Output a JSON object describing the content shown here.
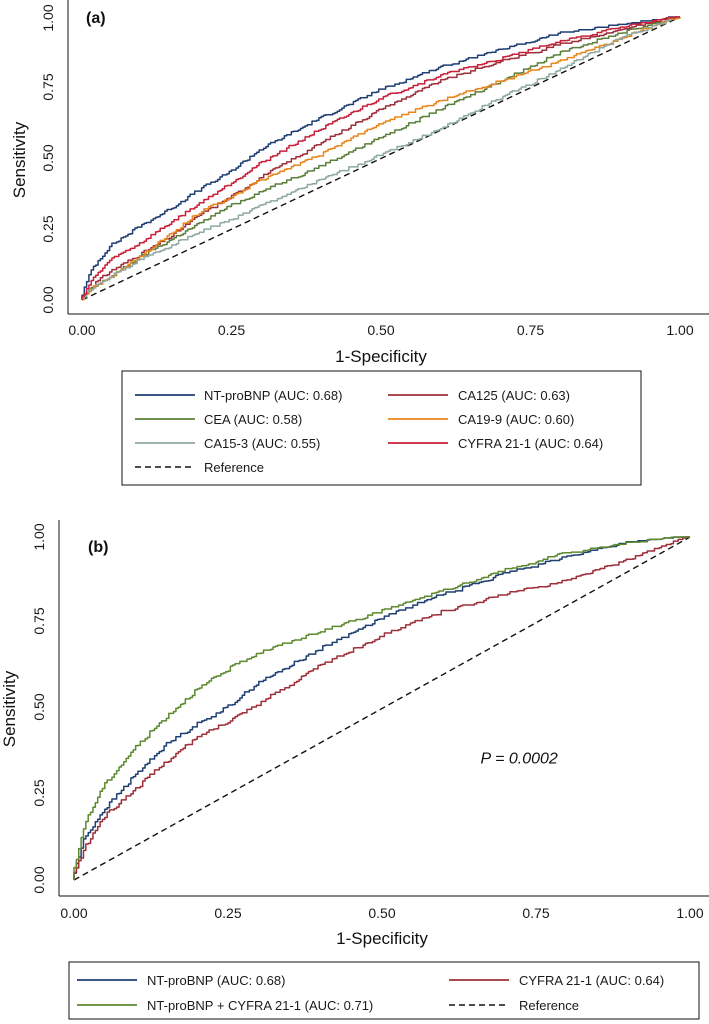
{
  "colors": {
    "ntprobnp": "#1f3f73",
    "ca125": "#9e2f3a",
    "cea": "#5b7f3a",
    "ca199": "#e8861c",
    "ca153": "#8fa8a0",
    "cyfra": "#c8203a",
    "combo": "#5d8a2e",
    "reference": "#111111"
  },
  "chart_data": [
    {
      "type": "line",
      "panel_label": "(a)",
      "xlabel": "1-Specificity",
      "ylabel": "Sensitivity",
      "xlim": [
        0,
        1
      ],
      "ylim": [
        0,
        1
      ],
      "xticks": [
        "0.00",
        "0.25",
        "0.50",
        "0.75",
        "1.00"
      ],
      "yticks": [
        "0.00",
        "0.25",
        "0.50",
        "0.75",
        "1.00"
      ],
      "legend": {
        "placement": "below",
        "entries": [
          "NT-proBNP (AUC: 0.68)",
          "CA125 (AUC: 0.63)",
          "CEA (AUC: 0.58)",
          "CA19-9 (AUC: 0.60)",
          "CA15-3 (AUC: 0.55)",
          "CYFRA 21-1 (AUC: 0.64)",
          "Reference"
        ]
      },
      "series": [
        {
          "name": "NT-proBNP",
          "auc": 0.68,
          "color_key": "ntprobnp",
          "x": [
            0,
            0.02,
            0.05,
            0.1,
            0.15,
            0.2,
            0.25,
            0.3,
            0.4,
            0.5,
            0.6,
            0.7,
            0.8,
            0.9,
            1.0
          ],
          "y": [
            0,
            0.11,
            0.19,
            0.26,
            0.32,
            0.39,
            0.45,
            0.53,
            0.64,
            0.74,
            0.82,
            0.88,
            0.94,
            0.97,
            1.0
          ]
        },
        {
          "name": "CA125",
          "auc": 0.63,
          "color_key": "ca125",
          "x": [
            0,
            0.02,
            0.05,
            0.1,
            0.15,
            0.2,
            0.25,
            0.3,
            0.4,
            0.5,
            0.6,
            0.7,
            0.8,
            0.9,
            1.0
          ],
          "y": [
            0,
            0.05,
            0.1,
            0.16,
            0.22,
            0.3,
            0.36,
            0.43,
            0.55,
            0.67,
            0.77,
            0.84,
            0.9,
            0.95,
            1.0
          ]
        },
        {
          "name": "CEA",
          "auc": 0.58,
          "color_key": "cea",
          "x": [
            0,
            0.02,
            0.05,
            0.1,
            0.15,
            0.2,
            0.25,
            0.3,
            0.4,
            0.5,
            0.6,
            0.7,
            0.8,
            0.9,
            1.0
          ],
          "y": [
            0,
            0.04,
            0.08,
            0.15,
            0.21,
            0.27,
            0.33,
            0.38,
            0.47,
            0.57,
            0.67,
            0.77,
            0.87,
            0.94,
            1.0
          ]
        },
        {
          "name": "CA19-9",
          "auc": 0.6,
          "color_key": "ca199",
          "x": [
            0,
            0.02,
            0.05,
            0.1,
            0.15,
            0.2,
            0.25,
            0.3,
            0.4,
            0.5,
            0.6,
            0.7,
            0.8,
            0.9,
            1.0
          ],
          "y": [
            0,
            0.04,
            0.08,
            0.15,
            0.23,
            0.31,
            0.36,
            0.42,
            0.51,
            0.62,
            0.7,
            0.77,
            0.84,
            0.92,
            1.0
          ]
        },
        {
          "name": "CA15-3",
          "auc": 0.55,
          "color_key": "ca153",
          "x": [
            0,
            0.02,
            0.05,
            0.1,
            0.15,
            0.2,
            0.25,
            0.3,
            0.4,
            0.5,
            0.6,
            0.7,
            0.8,
            0.9,
            1.0
          ],
          "y": [
            0,
            0.04,
            0.08,
            0.14,
            0.19,
            0.24,
            0.28,
            0.33,
            0.42,
            0.51,
            0.6,
            0.71,
            0.81,
            0.92,
            1.0
          ]
        },
        {
          "name": "CYFRA 21-1",
          "auc": 0.64,
          "color_key": "cyfra",
          "x": [
            0,
            0.02,
            0.05,
            0.1,
            0.15,
            0.2,
            0.25,
            0.3,
            0.4,
            0.5,
            0.6,
            0.7,
            0.8,
            0.9,
            1.0
          ],
          "y": [
            0,
            0.07,
            0.14,
            0.2,
            0.27,
            0.34,
            0.41,
            0.48,
            0.6,
            0.71,
            0.79,
            0.85,
            0.91,
            0.96,
            1.0
          ]
        },
        {
          "name": "Reference",
          "color_key": "reference",
          "dashed": true,
          "x": [
            0,
            1
          ],
          "y": [
            0,
            1
          ]
        }
      ]
    },
    {
      "type": "line",
      "panel_label": "(b)",
      "xlabel": "1-Specificity",
      "ylabel": "Sensitivity",
      "xlim": [
        0,
        1
      ],
      "ylim": [
        0,
        1
      ],
      "xticks": [
        "0.00",
        "0.25",
        "0.50",
        "0.75",
        "1.00"
      ],
      "yticks": [
        "0.00",
        "0.25",
        "0.50",
        "0.75",
        "1.00"
      ],
      "annotation": "P = 0.0002",
      "annotation_pos": {
        "x": 0.66,
        "y": 0.34
      },
      "legend": {
        "placement": "below",
        "entries": [
          "NT-proBNP (AUC: 0.68)",
          "CYFRA 21-1 (AUC: 0.64)",
          "NT-proBNP + CYFRA 21-1 (AUC: 0.71)",
          "Reference"
        ]
      },
      "series": [
        {
          "name": "NT-proBNP",
          "auc": 0.68,
          "color_key": "ntprobnp",
          "x": [
            0,
            0.02,
            0.05,
            0.1,
            0.15,
            0.2,
            0.25,
            0.3,
            0.4,
            0.5,
            0.6,
            0.7,
            0.8,
            0.9,
            1.0
          ],
          "y": [
            0,
            0.12,
            0.2,
            0.3,
            0.39,
            0.45,
            0.5,
            0.57,
            0.67,
            0.76,
            0.83,
            0.89,
            0.94,
            0.98,
            1.0
          ]
        },
        {
          "name": "CYFRA 21-1",
          "auc": 0.64,
          "color_key": "ca125",
          "x": [
            0,
            0.02,
            0.05,
            0.1,
            0.15,
            0.2,
            0.25,
            0.3,
            0.4,
            0.5,
            0.6,
            0.7,
            0.8,
            0.9,
            1.0
          ],
          "y": [
            0,
            0.09,
            0.18,
            0.26,
            0.34,
            0.41,
            0.46,
            0.51,
            0.62,
            0.71,
            0.78,
            0.83,
            0.87,
            0.93,
            1.0
          ]
        },
        {
          "name": "NT-proBNP + CYFRA 21-1",
          "auc": 0.71,
          "color_key": "combo",
          "x": [
            0,
            0.02,
            0.05,
            0.1,
            0.15,
            0.2,
            0.25,
            0.3,
            0.4,
            0.5,
            0.6,
            0.7,
            0.8,
            0.9,
            1.0
          ],
          "y": [
            0,
            0.16,
            0.27,
            0.38,
            0.47,
            0.55,
            0.61,
            0.66,
            0.72,
            0.78,
            0.84,
            0.9,
            0.95,
            0.98,
            1.0
          ]
        },
        {
          "name": "Reference",
          "color_key": "reference",
          "dashed": true,
          "x": [
            0,
            1
          ],
          "y": [
            0,
            1
          ]
        }
      ]
    }
  ]
}
